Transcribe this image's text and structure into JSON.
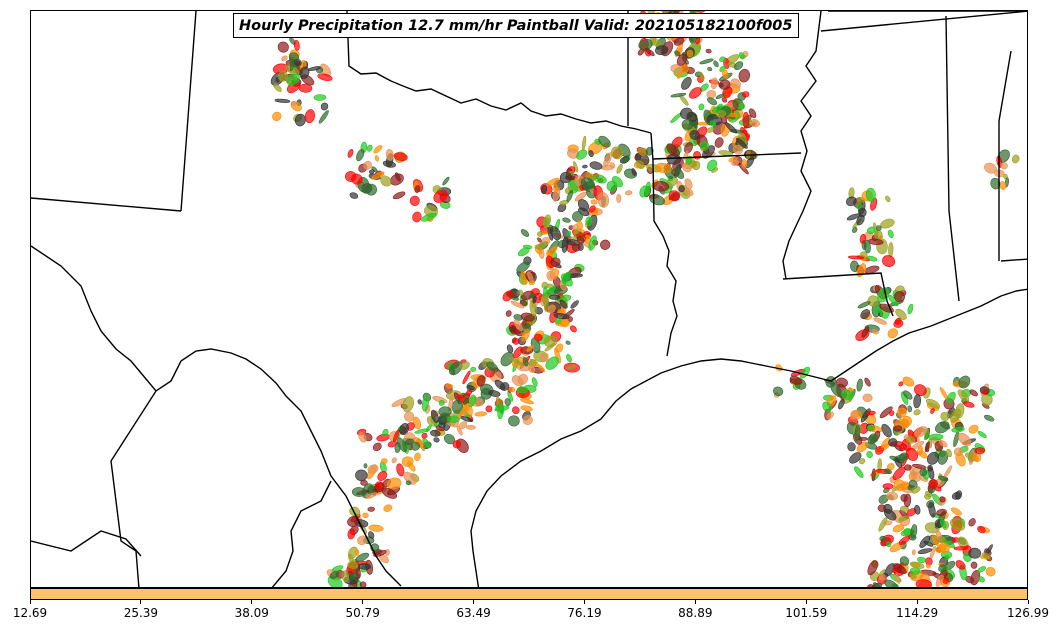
{
  "title": "Hourly Precipitation 12.7 mm/hr Paintball Valid: 202105182100f005",
  "colorbar": {
    "color": "#ffc266",
    "ticks": [
      "12.69",
      "25.39",
      "38.09",
      "50.79",
      "63.49",
      "76.19",
      "88.89",
      "101.59",
      "114.29",
      "126.99"
    ]
  },
  "paintball_colors": [
    "#ff0000",
    "#ff8c00",
    "#1ec81e",
    "#9aa01e",
    "#8b1a1a",
    "#2e6b2e",
    "#333333",
    "#e89050"
  ]
}
